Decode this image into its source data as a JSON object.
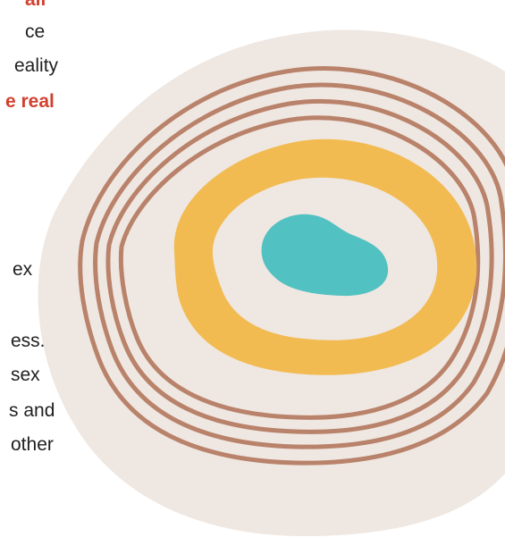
{
  "text_fragments": [
    {
      "id": "l1",
      "text": "all",
      "style": "red"
    },
    {
      "id": "l2",
      "text": "ce",
      "style": "normal"
    },
    {
      "id": "l3",
      "text": "eality",
      "style": "normal"
    },
    {
      "id": "l4",
      "text": "e real",
      "style": "red"
    },
    {
      "id": "l5",
      "text": "ex",
      "style": "normal"
    },
    {
      "id": "l6",
      "text": "ess.",
      "style": "normal"
    },
    {
      "id": "l7",
      "text": " sex",
      "style": "normal"
    },
    {
      "id": "l8",
      "text": "s and",
      "style": "normal"
    },
    {
      "id": "l9",
      "text": "other",
      "style": "normal"
    }
  ],
  "illustration": {
    "name": "concentric-rings-illustration",
    "colors": {
      "blob_background": "#efe7e1",
      "rings": "#b9826a",
      "yellow_band": "#f2bb52",
      "inner_fill": "#efe7e1",
      "center": "#52c1c1",
      "accent_text": "#d2412f"
    }
  }
}
